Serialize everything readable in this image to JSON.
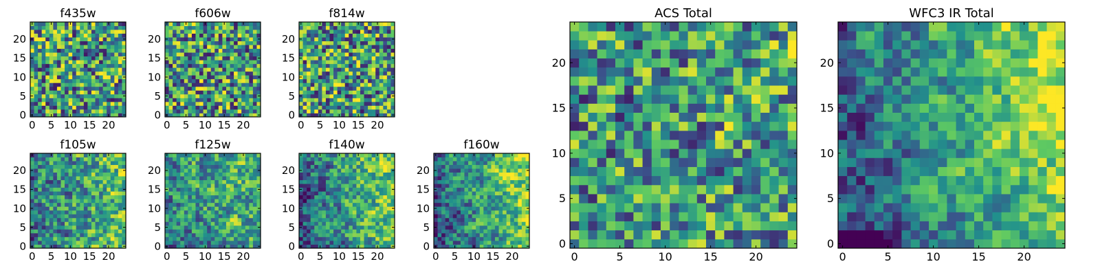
{
  "figure": {
    "colormap": [
      "#440154",
      "#3b528b",
      "#21918c",
      "#5ec962",
      "#fde725"
    ],
    "panels": [
      {
        "title": "f435w",
        "chart_data": {
          "type": "heatmap",
          "grid": [
            25,
            25
          ],
          "xlim": [
            0,
            24
          ],
          "ylim": [
            0,
            24
          ],
          "xticks": [
            0,
            5,
            10,
            15,
            20
          ],
          "yticks": [
            0,
            5,
            10,
            15,
            20
          ],
          "seed": 11
        }
      },
      {
        "title": "f606w",
        "chart_data": {
          "type": "heatmap",
          "grid": [
            25,
            25
          ],
          "xlim": [
            0,
            24
          ],
          "ylim": [
            0,
            24
          ],
          "xticks": [
            0,
            5,
            10,
            15,
            20
          ],
          "yticks": [
            0,
            5,
            10,
            15,
            20
          ],
          "seed": 23
        }
      },
      {
        "title": "f814w",
        "chart_data": {
          "type": "heatmap",
          "grid": [
            25,
            25
          ],
          "xlim": [
            0,
            24
          ],
          "ylim": [
            0,
            24
          ],
          "xticks": [
            0,
            5,
            10,
            15,
            20
          ],
          "yticks": [
            0,
            5,
            10,
            15,
            20
          ],
          "seed": 37
        }
      },
      {
        "title": "f105w",
        "chart_data": {
          "type": "heatmap",
          "grid": [
            25,
            25
          ],
          "xlim": [
            0,
            24
          ],
          "ylim": [
            0,
            24
          ],
          "xticks": [
            0,
            5,
            10,
            15,
            20
          ],
          "yticks": [
            0,
            5,
            10,
            15,
            20
          ],
          "seed": 41
        }
      },
      {
        "title": "f125w",
        "chart_data": {
          "type": "heatmap",
          "grid": [
            25,
            25
          ],
          "xlim": [
            0,
            24
          ],
          "ylim": [
            0,
            24
          ],
          "xticks": [
            0,
            5,
            10,
            15,
            20
          ],
          "yticks": [
            0,
            5,
            10,
            15,
            20
          ],
          "seed": 53
        }
      },
      {
        "title": "f140w",
        "chart_data": {
          "type": "heatmap",
          "grid": [
            25,
            25
          ],
          "xlim": [
            0,
            24
          ],
          "ylim": [
            0,
            24
          ],
          "xticks": [
            0,
            5,
            10,
            15,
            20
          ],
          "yticks": [
            0,
            5,
            10,
            15,
            20
          ],
          "seed": 67
        }
      },
      {
        "title": "f160w",
        "chart_data": {
          "type": "heatmap",
          "grid": [
            25,
            25
          ],
          "xlim": [
            0,
            24
          ],
          "ylim": [
            0,
            24
          ],
          "xticks": [
            0,
            5,
            10,
            15,
            20
          ],
          "yticks": [
            0,
            5,
            10,
            15,
            20
          ],
          "seed": 71
        }
      },
      {
        "title": "ACS Total",
        "chart_data": {
          "type": "heatmap",
          "grid": [
            25,
            25
          ],
          "xlim": [
            0,
            24
          ],
          "ylim": [
            0,
            24
          ],
          "xticks": [
            0,
            5,
            10,
            15,
            20
          ],
          "yticks": [
            0,
            5,
            10,
            15,
            20
          ],
          "seed": 83
        }
      },
      {
        "title": "WFC3 IR Total",
        "chart_data": {
          "type": "heatmap",
          "grid": [
            25,
            25
          ],
          "xlim": [
            0,
            24
          ],
          "ylim": [
            0,
            24
          ],
          "xticks": [
            0,
            5,
            10,
            15,
            20
          ],
          "yticks": [
            0,
            5,
            10,
            15,
            20
          ],
          "seed": 97
        }
      }
    ]
  }
}
